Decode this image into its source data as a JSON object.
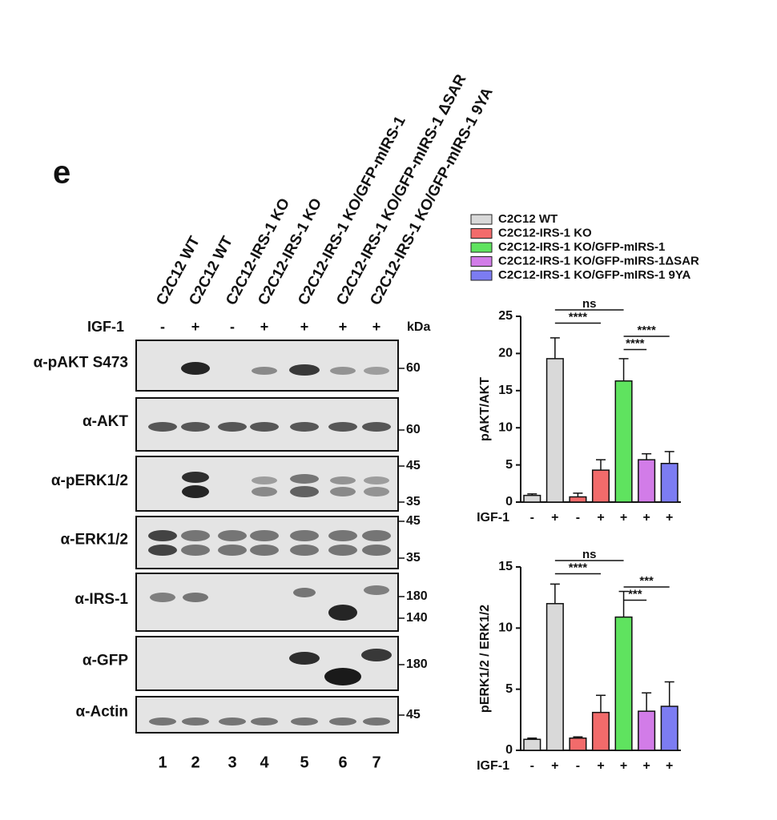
{
  "panel_label": "e",
  "blot": {
    "lanes": [
      "C2C12 WT",
      "C2C12 WT",
      "C2C12-IRS-1 KO",
      "C2C12-IRS-1 KO",
      "C2C12-IRS-1 KO/GFP-mIRS-1",
      "C2C12-IRS-1 KO/GFP-mIRS-1 ΔSAR",
      "C2C12-IRS-1 KO/GFP-mIRS-1 9YA"
    ],
    "treatment_label": "IGF-1",
    "treatment": [
      "-",
      "+",
      "-",
      "+",
      "+",
      "+",
      "+"
    ],
    "kda_label": "kDa",
    "lane_numbers": [
      "1",
      "2",
      "3",
      "4",
      "5",
      "6",
      "7"
    ],
    "rows": [
      {
        "label": "α-pAKT S473",
        "markers": [
          "60"
        ]
      },
      {
        "label": "α-AKT",
        "markers": [
          "60"
        ]
      },
      {
        "label": "α-pERK1/2",
        "markers": [
          "45",
          "35"
        ]
      },
      {
        "label": "α-ERK1/2",
        "markers": [
          "45",
          "35"
        ]
      },
      {
        "label": "α-IRS-1",
        "markers": [
          "180",
          "140"
        ]
      },
      {
        "label": "α-GFP",
        "markers": [
          "180"
        ]
      },
      {
        "label": "α-Actin",
        "markers": [
          "45"
        ]
      }
    ]
  },
  "chart_data": [
    {
      "type": "bar",
      "ylabel": "pAKT/AKT",
      "xlabel": "IGF-1",
      "categories": [
        "-",
        "+",
        "-",
        "+",
        "+",
        "+",
        "+"
      ],
      "ylim": [
        0,
        25
      ],
      "yticks": [
        0,
        5,
        10,
        15,
        20,
        25
      ],
      "series": [
        {
          "name": "C2C12 WT",
          "color": "#d9d9d9",
          "values": [
            0.9,
            19.3,
            null,
            null,
            null,
            null,
            null
          ],
          "errors": [
            0.2,
            2.8,
            null,
            null,
            null,
            null,
            null
          ]
        },
        {
          "name": "C2C12-IRS-1 KO",
          "color": "#f26b6b",
          "values": [
            null,
            null,
            0.7,
            4.3,
            null,
            null,
            null
          ],
          "errors": [
            null,
            null,
            0.5,
            1.4,
            null,
            null,
            null
          ]
        },
        {
          "name": "C2C12-IRS-1 KO/GFP-mIRS-1",
          "color": "#5fe35f",
          "values": [
            null,
            null,
            null,
            null,
            16.3,
            null,
            null
          ],
          "errors": [
            null,
            null,
            null,
            null,
            3.0,
            null,
            null
          ]
        },
        {
          "name": "C2C12-IRS-1 KO/GFP-mIRS-1ΔSAR",
          "color": "#d27ce8",
          "values": [
            null,
            null,
            null,
            null,
            null,
            5.7,
            null
          ],
          "errors": [
            null,
            null,
            null,
            null,
            null,
            0.8,
            null
          ]
        },
        {
          "name": "C2C12-IRS-1 KO/GFP-mIRS-1 9YA",
          "color": "#7c7cf2",
          "values": [
            null,
            null,
            null,
            null,
            null,
            null,
            5.2
          ],
          "errors": [
            null,
            null,
            null,
            null,
            null,
            null,
            1.6
          ]
        }
      ],
      "annotations": [
        {
          "text": "ns",
          "from": 1,
          "to": 4
        },
        {
          "text": "****",
          "from": 1,
          "to": 3
        },
        {
          "text": "****",
          "from": 4,
          "to": 6
        },
        {
          "text": "****",
          "from": 4,
          "to": 5
        }
      ]
    },
    {
      "type": "bar",
      "ylabel": "pERK1/2 / ERK1/2",
      "xlabel": "IGF-1",
      "categories": [
        "-",
        "+",
        "-",
        "+",
        "+",
        "+",
        "+"
      ],
      "ylim": [
        0,
        15
      ],
      "yticks": [
        0,
        5,
        10,
        15
      ],
      "series": [
        {
          "color": "#d9d9d9",
          "values": [
            0.9,
            12.0,
            null,
            null,
            null,
            null,
            null
          ],
          "errors": [
            0.1,
            1.6,
            null,
            null,
            null,
            null,
            null
          ]
        },
        {
          "color": "#f26b6b",
          "values": [
            null,
            null,
            1.0,
            3.1,
            null,
            null,
            null
          ],
          "errors": [
            null,
            null,
            0.1,
            1.4,
            null,
            null,
            null
          ]
        },
        {
          "color": "#5fe35f",
          "values": [
            null,
            null,
            null,
            null,
            10.9,
            null,
            null
          ],
          "errors": [
            null,
            null,
            null,
            null,
            2.1,
            null,
            null
          ]
        },
        {
          "color": "#d27ce8",
          "values": [
            null,
            null,
            null,
            null,
            null,
            3.2,
            null
          ],
          "errors": [
            null,
            null,
            null,
            null,
            null,
            1.5,
            null
          ]
        },
        {
          "color": "#7c7cf2",
          "values": [
            null,
            null,
            null,
            null,
            null,
            null,
            3.6
          ],
          "errors": [
            null,
            null,
            null,
            null,
            null,
            null,
            2.0
          ]
        }
      ],
      "annotations": [
        {
          "text": "ns",
          "from": 1,
          "to": 4
        },
        {
          "text": "****",
          "from": 1,
          "to": 3
        },
        {
          "text": "***",
          "from": 4,
          "to": 6
        },
        {
          "text": "***",
          "from": 4,
          "to": 5
        }
      ]
    }
  ]
}
